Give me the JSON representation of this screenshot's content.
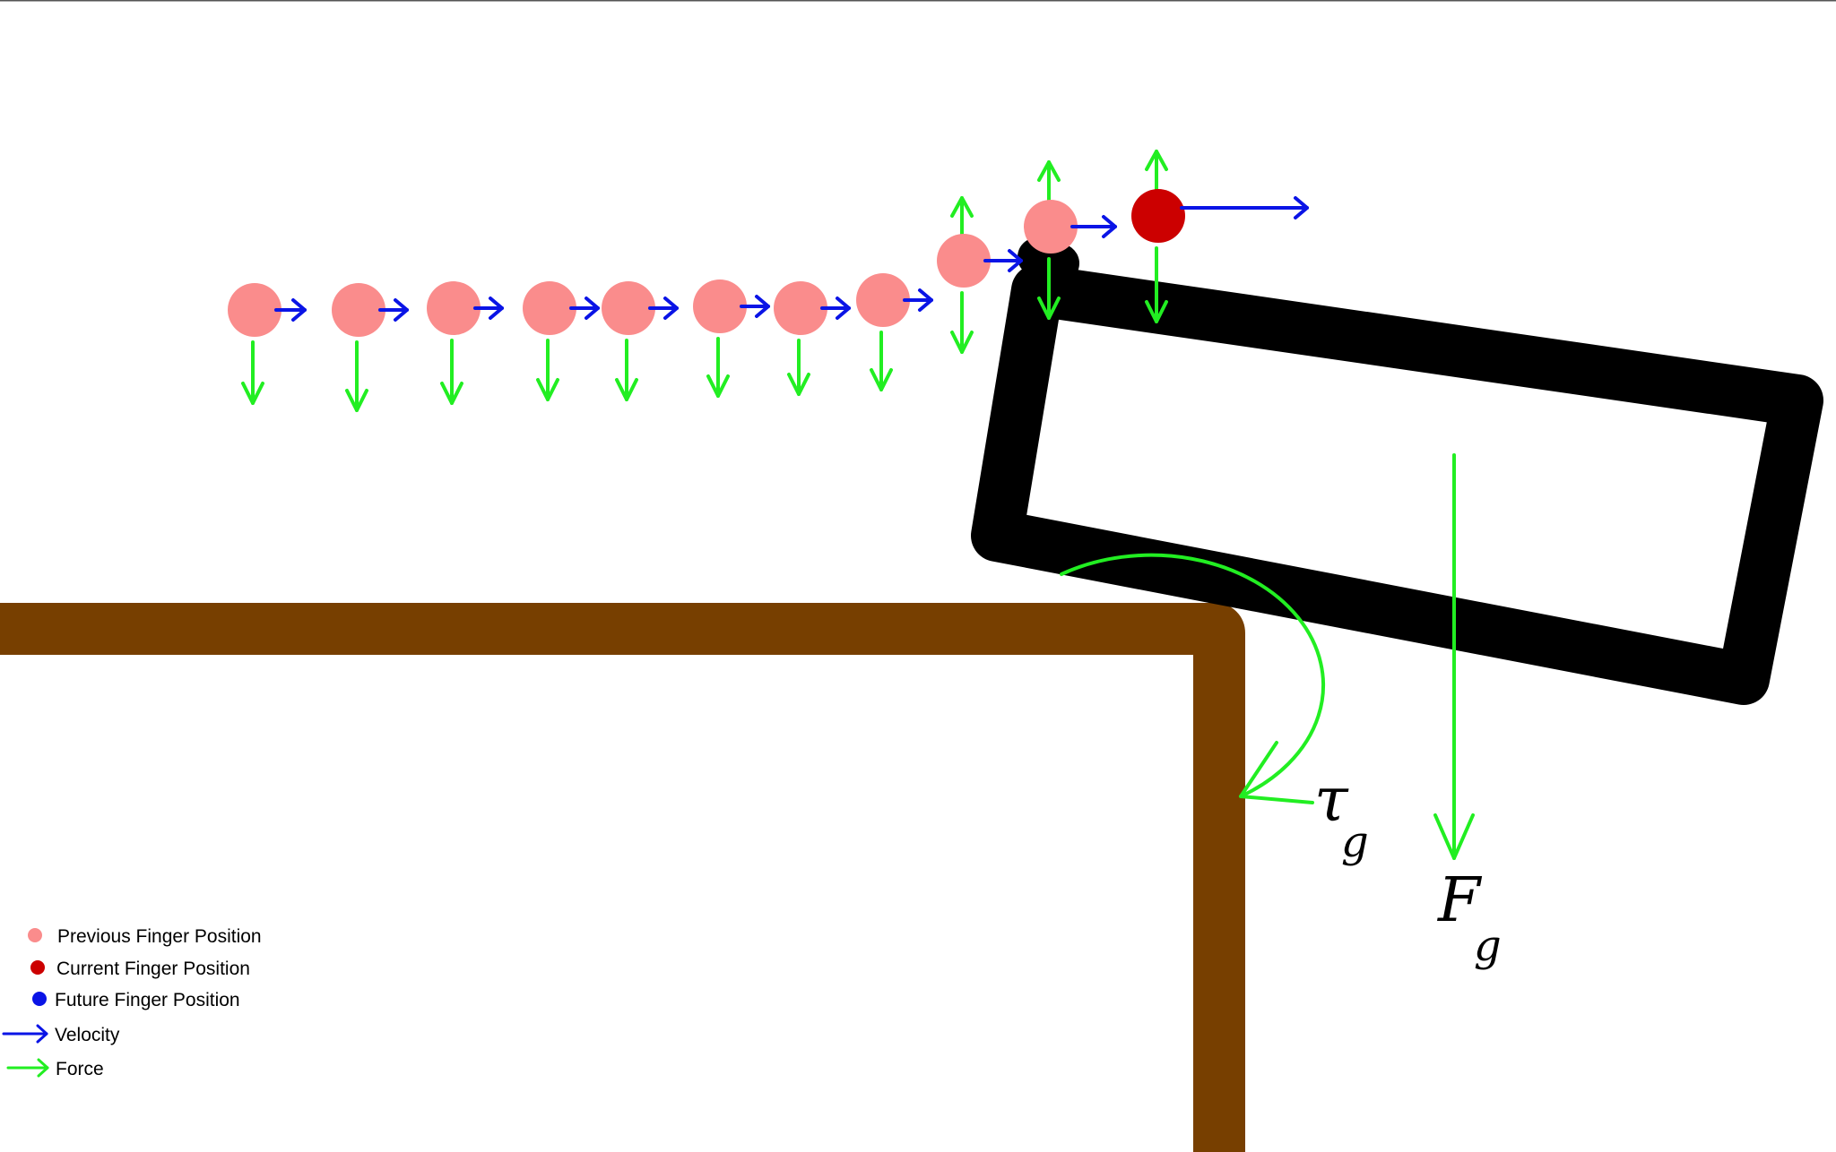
{
  "colors": {
    "background": "#ffffff",
    "top_rule": "#555555",
    "table": "#773f00",
    "box": "#000000",
    "previous_finger": "#fa8c8c",
    "current_finger": "#cc0000",
    "future_finger": "#0a14e6",
    "velocity": "#0a14e6",
    "force": "#22ee22",
    "text": "#000000"
  },
  "icons": {
    "previous_finger": "filled-circle",
    "current_finger": "filled-circle",
    "future_finger": "filled-circle",
    "velocity": "open-arrow-right",
    "force": "open-arrow-right"
  },
  "annotations": {
    "torque": {
      "symbol": "τ",
      "subscript": "g"
    },
    "gravity_force": {
      "symbol": "F",
      "subscript": "g"
    }
  },
  "legend": {
    "previous_finger": "Previous Finger Position",
    "current_finger": "Current Finger Position",
    "future_finger": "Future Finger Position",
    "velocity": "Velocity",
    "force": "Force"
  }
}
